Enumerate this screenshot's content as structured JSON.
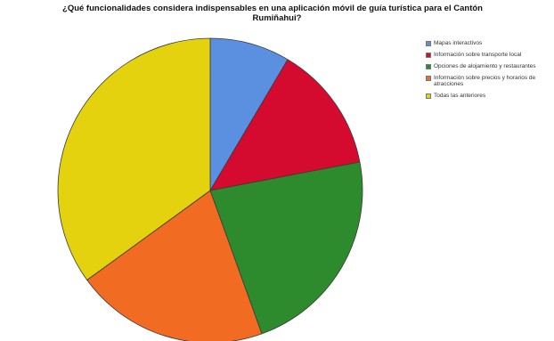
{
  "chart_data": {
    "type": "pie",
    "title_line1": "¿Qué funcionalidades considera indispensables en una aplicación móvil de guía turística para el Cantón",
    "title_line2": "Rumiñahui?",
    "slices": [
      {
        "label": "Mapas interactivos",
        "value": 8.5,
        "color": "#5b8fe0"
      },
      {
        "label": "Información sobre transporte local",
        "value": 13.5,
        "color": "#d40a2e"
      },
      {
        "label": "Opciones de alojamiento y restaurantes",
        "value": 22.5,
        "color": "#2d8a2d"
      },
      {
        "label": "Información sobre precios y horarios de atracciones",
        "value": 20.5,
        "color": "#f26b22"
      },
      {
        "label": "Todas las anteriores",
        "value": 35.0,
        "color": "#e4d20f"
      }
    ],
    "start_angle_deg": 0,
    "direction": "clockwise",
    "legend_position": "right",
    "slice_labels": "none"
  }
}
